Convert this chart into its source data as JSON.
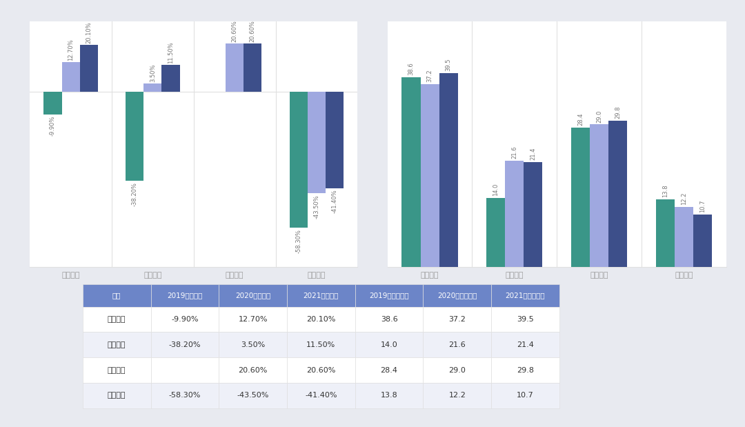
{
  "companies": [
    "蔚来汽车",
    "小鹏汽车",
    "理想汽车",
    "威马汽车"
  ],
  "gross_margin": {
    "2019": [
      -9.9,
      -38.2,
      null,
      -58.3
    ],
    "2020": [
      12.7,
      3.5,
      20.6,
      -43.5
    ],
    "2021": [
      20.1,
      11.5,
      20.6,
      -41.4
    ]
  },
  "gross_margin_labels": {
    "2019": [
      "-9.90%",
      "-38.20%",
      null,
      "-58.30%"
    ],
    "2020": [
      "12.70%",
      "3.50%",
      "20.60%",
      "-43.50%"
    ],
    "2021": [
      "20.10%",
      "11.50%",
      "20.60%",
      "-41.40%"
    ]
  },
  "avg_price": {
    "2019": [
      38.6,
      14.0,
      28.4,
      13.8
    ],
    "2020": [
      37.2,
      21.6,
      29.0,
      12.2
    ],
    "2021": [
      39.5,
      21.4,
      29.8,
      10.7
    ]
  },
  "avg_price_labels": {
    "2019": [
      "38.6",
      "14.0",
      "28.4",
      "13.8"
    ],
    "2020": [
      "37.2",
      "21.6",
      "29.0",
      "12.2"
    ],
    "2021": [
      "39.5",
      "21.4",
      "29.8",
      "10.7"
    ]
  },
  "color_2019": "#3a9688",
  "color_2020": "#9fa8e0",
  "color_2021": "#3d4f8a",
  "outer_bg": "#e8eaf0",
  "card_bg": "#ffffff",
  "chart_bg": "#ffffff",
  "table_header_bg": "#6c85c8",
  "table_header_text": "#ffffff",
  "table_row_bg1": "#ffffff",
  "table_row_bg2": "#eef0f8",
  "table_text_color": "#333333",
  "axis_label_color": "#999999",
  "bar_label_color": "#777777",
  "legend_text_color": "#666666",
  "divider_color": "#e0e0e0",
  "legend_left": [
    "2019年毛利率",
    "2020年毛利率",
    "2021年毛利率"
  ],
  "legend_right": [
    "2019年平均车价",
    "2020年平均车价",
    "2021年平均车价"
  ],
  "table_headers": [
    "车企",
    "2019年毛利率",
    "2020年毛利率",
    "2021年毛利率",
    "2019年平均车价",
    "2020年平均车价",
    "2021年平均车价"
  ],
  "table_rows": [
    [
      "蔚来汽车",
      "-9.90%",
      "12.70%",
      "20.10%",
      "38.6",
      "37.2",
      "39.5"
    ],
    [
      "小鹏汽车",
      "-38.20%",
      "3.50%",
      "11.50%",
      "14.0",
      "21.6",
      "21.4"
    ],
    [
      "理想汽车",
      "",
      "20.60%",
      "20.60%",
      "28.4",
      "29.0",
      "29.8"
    ],
    [
      "威马汽车",
      "-58.30%",
      "-43.50%",
      "-41.40%",
      "13.8",
      "12.2",
      "10.7"
    ]
  ]
}
